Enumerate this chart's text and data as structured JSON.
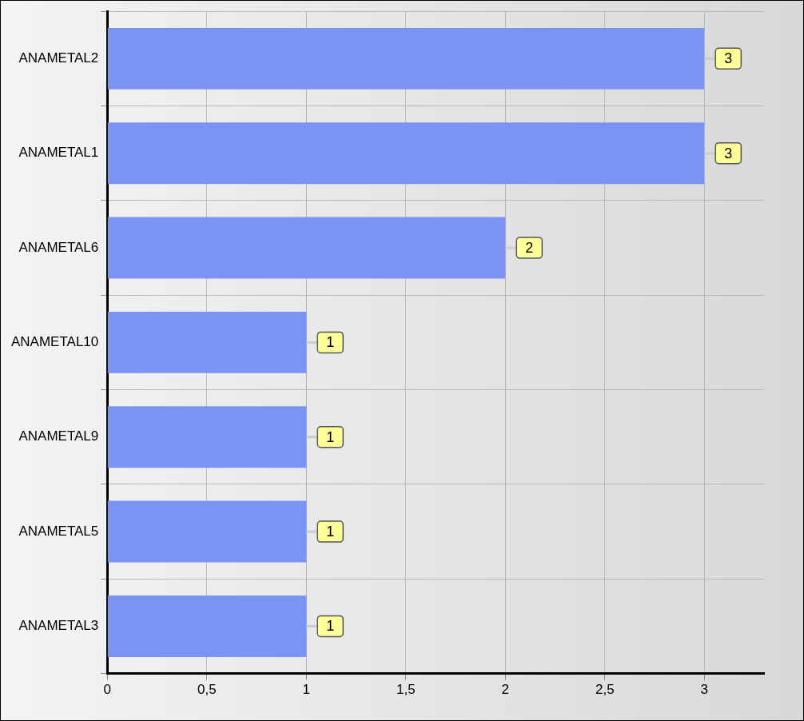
{
  "chart_data": {
    "type": "bar",
    "orientation": "horizontal",
    "categories": [
      "ANAMETAL2",
      "ANAMETAL1",
      "ANAMETAL6",
      "ANAMETAL10",
      "ANAMETAL9",
      "ANAMETAL5",
      "ANAMETAL3"
    ],
    "values": [
      3,
      3,
      2,
      1,
      1,
      1,
      1
    ],
    "color": "#7b93f3",
    "xlim": [
      0,
      3.3
    ],
    "xticks": [
      0,
      {
        "value": 0.5,
        "label": "0,5"
      },
      1,
      {
        "value": 1.5,
        "label": "1,5"
      },
      2,
      {
        "value": 2.5,
        "label": "2,5"
      },
      3
    ],
    "grid": true,
    "legend": false,
    "data_labels": true
  }
}
